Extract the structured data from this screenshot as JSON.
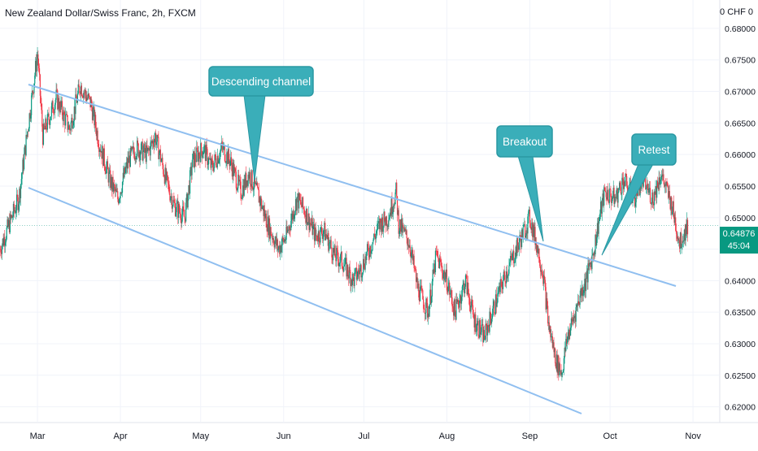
{
  "chart_data": {
    "type": "candlestick",
    "title": "New Zealand Dollar/Swiss Franc, 2h, FXCM",
    "currency": "CHF",
    "ylim": [
      0.6175,
      0.6845
    ],
    "yticks": [
      "0.68000",
      "0.67500",
      "0.67000",
      "0.66500",
      "0.66000",
      "0.65500",
      "0.65000",
      "0.64500",
      "0.64000",
      "0.63500",
      "0.63000",
      "0.62500",
      "0.62000"
    ],
    "xticks": [
      "Mar",
      "Apr",
      "May",
      "Jun",
      "Jul",
      "Aug",
      "Sep",
      "Oct",
      "Nov"
    ],
    "last_price": "0.64876",
    "countdown": "45:04",
    "price_path": [
      [
        "2023-02-15",
        0.645
      ],
      [
        "2023-02-22",
        0.653
      ],
      [
        "2023-03-01",
        0.676
      ],
      [
        "2023-03-03",
        0.663
      ],
      [
        "2023-03-08",
        0.669
      ],
      [
        "2023-03-13",
        0.664
      ],
      [
        "2023-03-17",
        0.671
      ],
      [
        "2023-03-21",
        0.668
      ],
      [
        "2023-03-24",
        0.662
      ],
      [
        "2023-03-28",
        0.656
      ],
      [
        "2023-03-31",
        0.653
      ],
      [
        "2023-04-04",
        0.659
      ],
      [
        "2023-04-07",
        0.661
      ],
      [
        "2023-04-11",
        0.66
      ],
      [
        "2023-04-14",
        0.663
      ],
      [
        "2023-04-18",
        0.656
      ],
      [
        "2023-04-21",
        0.652
      ],
      [
        "2023-04-25",
        0.65
      ],
      [
        "2023-04-28",
        0.659
      ],
      [
        "2023-05-02",
        0.661
      ],
      [
        "2023-05-05",
        0.658
      ],
      [
        "2023-05-09",
        0.661
      ],
      [
        "2023-05-12",
        0.659
      ],
      [
        "2023-05-16",
        0.654
      ],
      [
        "2023-05-19",
        0.657
      ],
      [
        "2023-05-23",
        0.653
      ],
      [
        "2023-05-26",
        0.649
      ],
      [
        "2023-05-30",
        0.645
      ],
      [
        "2023-06-02",
        0.647
      ],
      [
        "2023-06-06",
        0.653
      ],
      [
        "2023-06-09",
        0.651
      ],
      [
        "2023-06-13",
        0.647
      ],
      [
        "2023-06-16",
        0.648
      ],
      [
        "2023-06-20",
        0.644
      ],
      [
        "2023-06-23",
        0.643
      ],
      [
        "2023-06-27",
        0.64
      ],
      [
        "2023-06-30",
        0.642
      ],
      [
        "2023-07-04",
        0.646
      ],
      [
        "2023-07-07",
        0.649
      ],
      [
        "2023-07-10",
        0.65
      ],
      [
        "2023-07-13",
        0.654
      ],
      [
        "2023-07-14",
        0.649
      ],
      [
        "2023-07-18",
        0.646
      ],
      [
        "2023-07-21",
        0.639
      ],
      [
        "2023-07-25",
        0.635
      ],
      [
        "2023-07-28",
        0.644
      ],
      [
        "2023-08-01",
        0.64
      ],
      [
        "2023-08-04",
        0.635
      ],
      [
        "2023-08-08",
        0.64
      ],
      [
        "2023-08-11",
        0.634
      ],
      [
        "2023-08-15",
        0.631
      ],
      [
        "2023-08-18",
        0.635
      ],
      [
        "2023-08-22",
        0.64
      ],
      [
        "2023-08-25",
        0.643
      ],
      [
        "2023-08-29",
        0.647
      ],
      [
        "2023-09-01",
        0.65
      ],
      [
        "2023-09-04",
        0.645
      ],
      [
        "2023-09-06",
        0.641
      ],
      [
        "2023-09-08",
        0.633
      ],
      [
        "2023-09-11",
        0.627
      ],
      [
        "2023-09-13",
        0.6255
      ],
      [
        "2023-09-15",
        0.631
      ],
      [
        "2023-09-18",
        0.635
      ],
      [
        "2023-09-20",
        0.638
      ],
      [
        "2023-09-22",
        0.64
      ],
      [
        "2023-09-25",
        0.645
      ],
      [
        "2023-09-27",
        0.65
      ],
      [
        "2023-09-29",
        0.654
      ],
      [
        "2023-10-03",
        0.653
      ],
      [
        "2023-10-06",
        0.656
      ],
      [
        "2023-10-10",
        0.653
      ],
      [
        "2023-10-13",
        0.656
      ],
      [
        "2023-10-17",
        0.653
      ],
      [
        "2023-10-20",
        0.657
      ],
      [
        "2023-10-24",
        0.652
      ],
      [
        "2023-10-27",
        0.646
      ],
      [
        "2023-10-30",
        0.6488
      ]
    ],
    "annotations": [
      {
        "text": "Descending channel"
      },
      {
        "text": "Breakout"
      },
      {
        "text": "Retest"
      }
    ],
    "colors": {
      "up": "#089981",
      "down": "#f23645",
      "channel": "#90bff0",
      "callout_fill": "#3aaeb9",
      "callout_border": "#2a98a3",
      "grid": "#f0f3fa",
      "price_tag": "#089981"
    }
  }
}
